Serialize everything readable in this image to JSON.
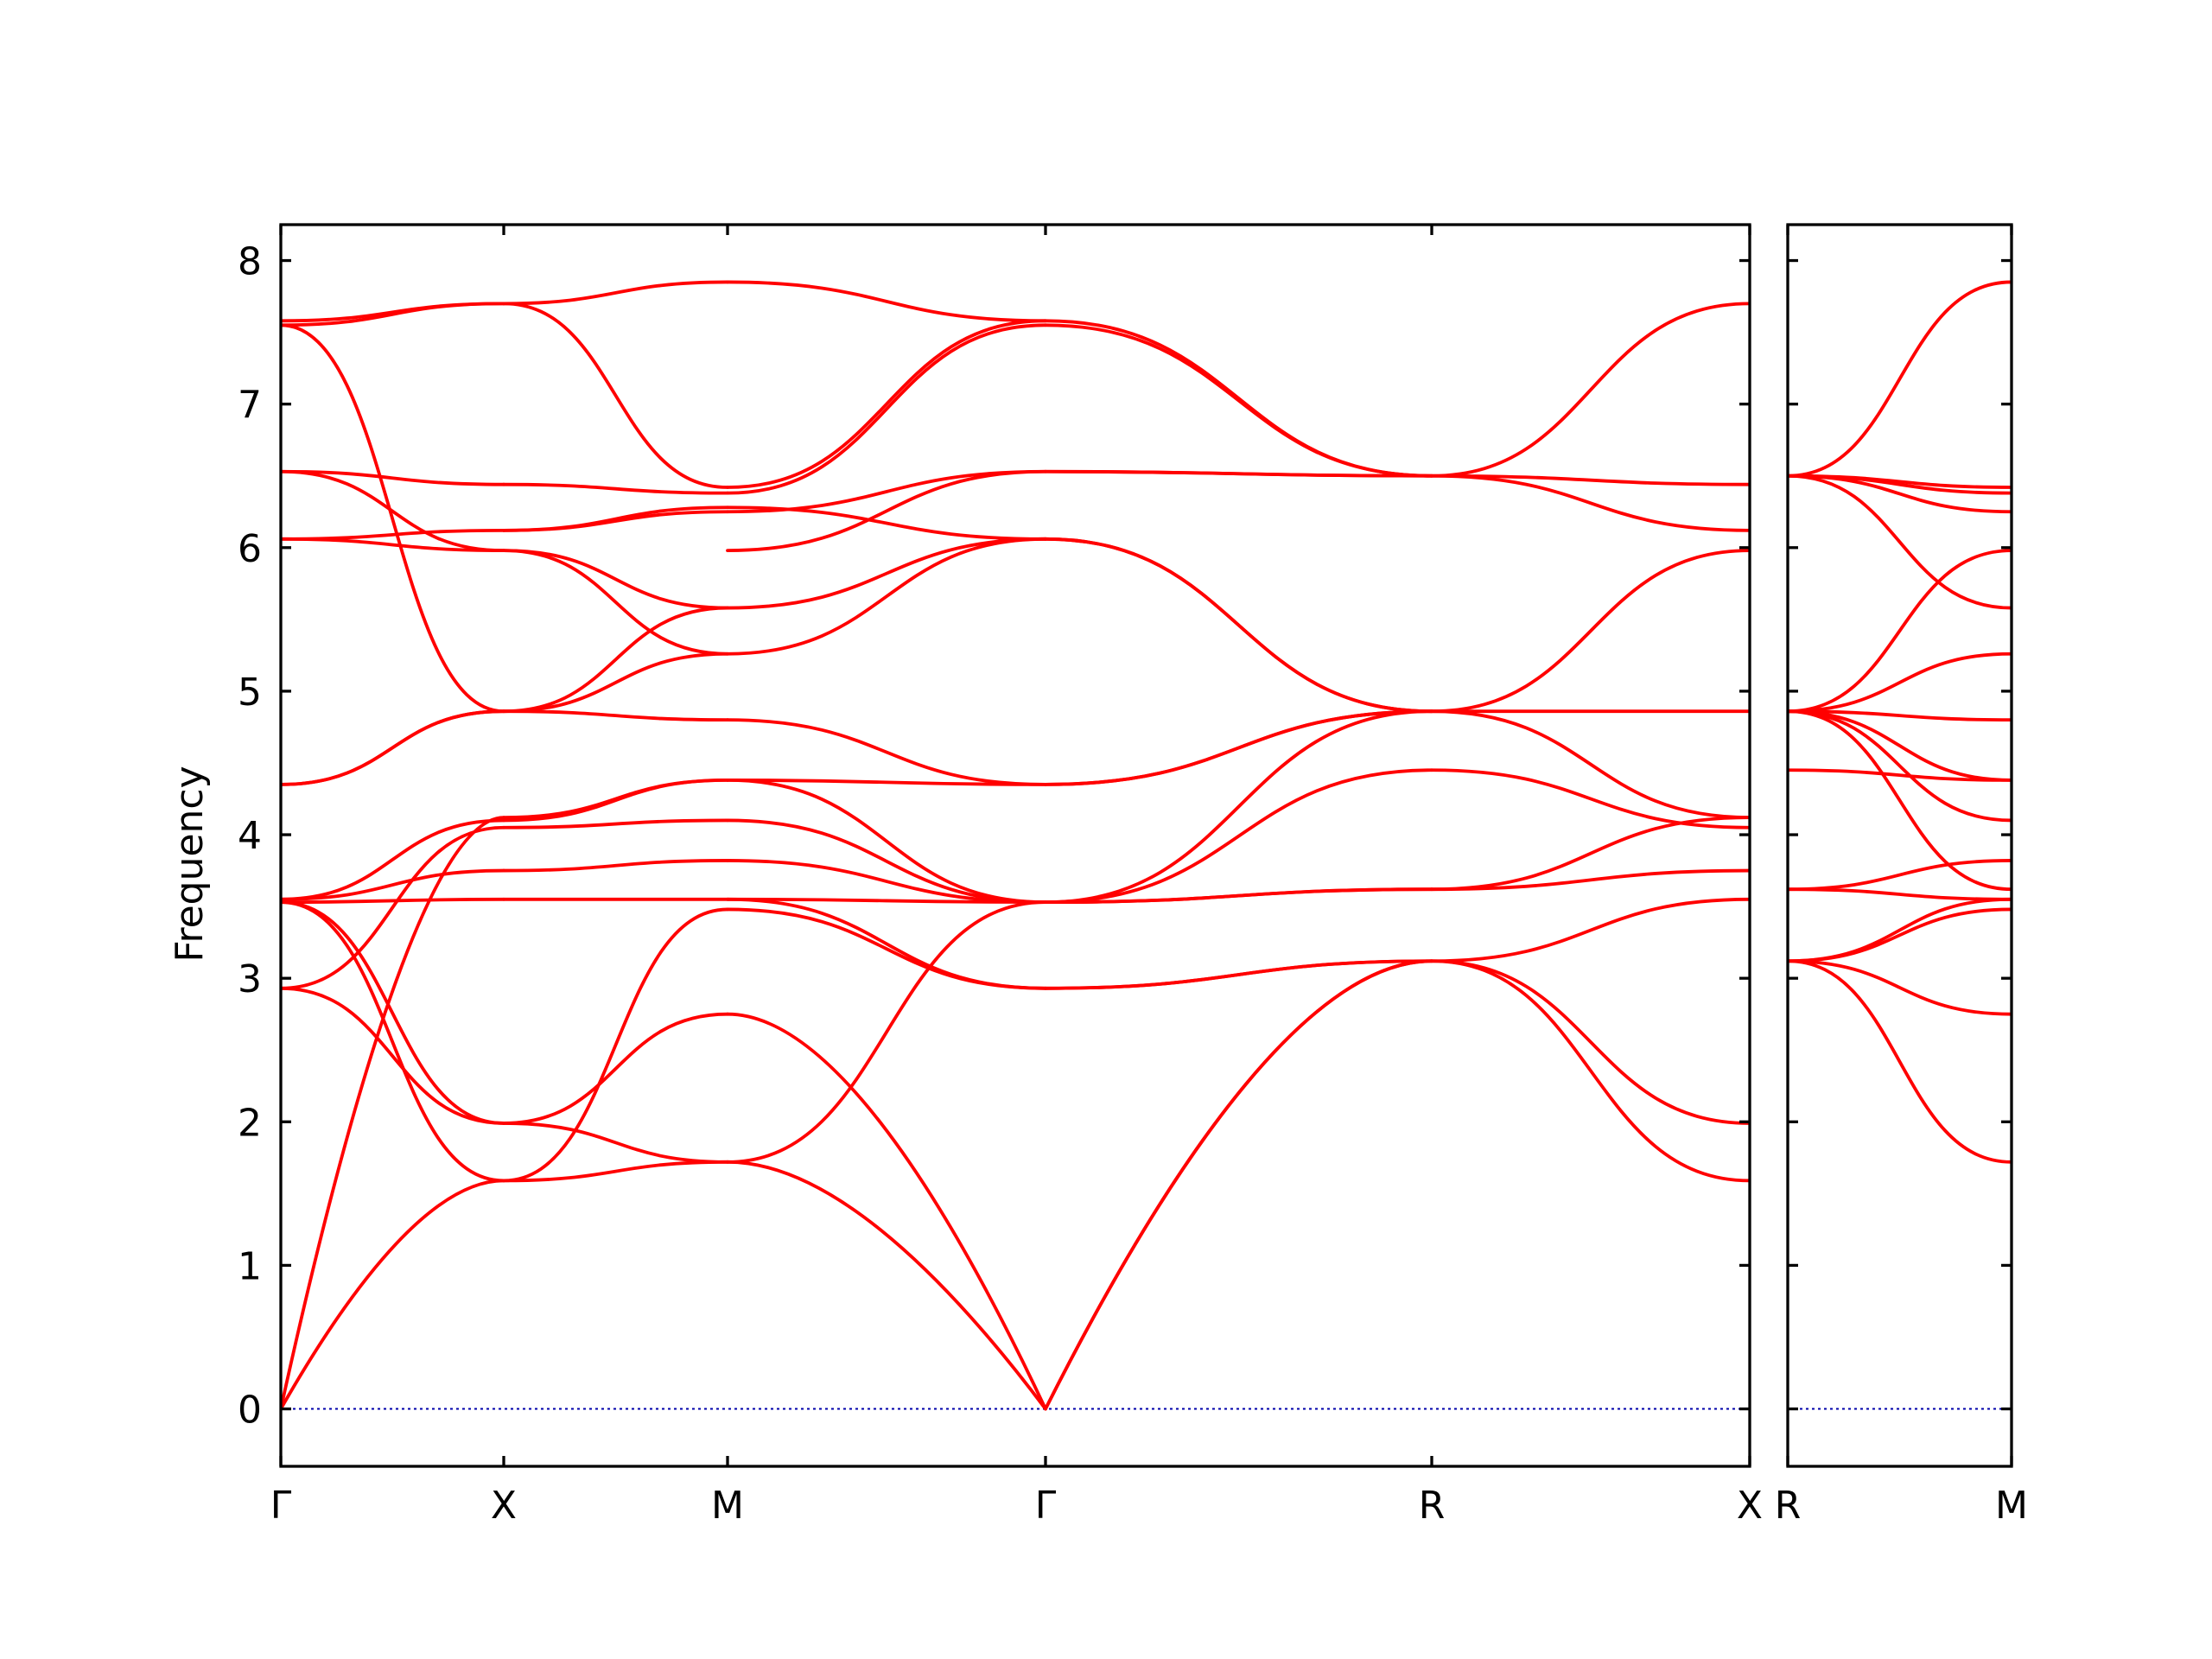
{
  "chart_data": {
    "type": "line",
    "ylabel": "Frequency",
    "ylim": [
      -0.4,
      8.25
    ],
    "yticks": [
      "0",
      "1",
      "2",
      "3",
      "4",
      "5",
      "6",
      "7",
      "8"
    ],
    "grid": false,
    "colors": {
      "bands": "#ff0000",
      "zero_line": "#0000aa",
      "axes": "#000000"
    },
    "panels": [
      {
        "xlabels": [
          "Γ",
          "X",
          "M",
          "Γ",
          "R",
          "X"
        ],
        "segments": [
          {
            "from": "Γ",
            "to": "X",
            "bands": [
              [
                0,
                1.59
              ],
              [
                0,
                4.12
              ],
              [
                2.93,
                1.99
              ],
              [
                2.93,
                4.05
              ],
              [
                3.53,
                1.59
              ],
              [
                3.53,
                1.99
              ],
              [
                3.53,
                3.55
              ],
              [
                3.55,
                4.1
              ],
              [
                3.55,
                3.75
              ],
              [
                4.35,
                4.86
              ],
              [
                4.35,
                4.86
              ],
              [
                6.06,
                5.98
              ],
              [
                6.06,
                6.12
              ],
              [
                6.53,
                5.98
              ],
              [
                6.53,
                6.44
              ],
              [
                7.55,
                4.86
              ],
              [
                7.55,
                7.7
              ],
              [
                7.58,
                7.7
              ]
            ]
          },
          {
            "from": "X",
            "to": "M",
            "bands": [
              [
                1.59,
                1.72
              ],
              [
                1.59,
                3.48
              ],
              [
                1.99,
                2.75
              ],
              [
                1.99,
                1.72
              ],
              [
                3.55,
                3.55
              ],
              [
                3.75,
                3.82
              ],
              [
                4.05,
                4.1
              ],
              [
                4.1,
                4.38
              ],
              [
                4.12,
                4.38
              ],
              [
                4.86,
                4.8
              ],
              [
                4.86,
                5.26
              ],
              [
                4.86,
                5.58
              ],
              [
                5.98,
                5.26
              ],
              [
                5.98,
                5.58
              ],
              [
                6.12,
                6.25
              ],
              [
                6.12,
                6.28
              ],
              [
                6.44,
                6.38
              ],
              [
                7.7,
                7.85
              ],
              [
                7.7,
                6.42
              ]
            ]
          },
          {
            "from": "M",
            "to": "Γ",
            "bands": [
              [
                1.72,
                0
              ],
              [
                2.75,
                0
              ],
              [
                3.48,
                2.93
              ],
              [
                3.55,
                2.93
              ],
              [
                1.72,
                3.53
              ],
              [
                3.82,
                3.53
              ],
              [
                3.55,
                3.53
              ],
              [
                4.1,
                3.53
              ],
              [
                4.38,
                3.53
              ],
              [
                4.38,
                4.35
              ],
              [
                4.8,
                4.35
              ],
              [
                5.26,
                6.06
              ],
              [
                5.58,
                6.06
              ],
              [
                6.25,
                6.53
              ],
              [
                5.98,
                6.53
              ],
              [
                6.28,
                6.06
              ],
              [
                6.38,
                7.55
              ],
              [
                6.42,
                7.58
              ],
              [
                7.85,
                7.58
              ]
            ]
          },
          {
            "from": "Γ",
            "to": "R",
            "bands": [
              [
                0,
                3.12
              ],
              [
                0,
                3.12
              ],
              [
                2.93,
                3.12
              ],
              [
                2.93,
                3.12
              ],
              [
                3.53,
                3.62
              ],
              [
                3.53,
                3.62
              ],
              [
                3.53,
                4.45
              ],
              [
                3.53,
                4.86
              ],
              [
                4.35,
                4.86
              ],
              [
                4.35,
                4.86
              ],
              [
                6.06,
                4.86
              ],
              [
                6.06,
                4.86
              ],
              [
                6.53,
                6.5
              ],
              [
                6.53,
                6.5
              ],
              [
                7.55,
                6.5
              ],
              [
                7.58,
                6.5
              ]
            ]
          },
          {
            "from": "R",
            "to": "X",
            "bands": [
              [
                3.12,
                1.59
              ],
              [
                3.12,
                1.99
              ],
              [
                3.12,
                3.55
              ],
              [
                3.62,
                3.75
              ],
              [
                3.62,
                4.12
              ],
              [
                4.45,
                4.05
              ],
              [
                4.86,
                4.12
              ],
              [
                4.86,
                4.86
              ],
              [
                4.86,
                5.98
              ],
              [
                6.5,
                6.12
              ],
              [
                6.5,
                6.44
              ],
              [
                6.5,
                7.7
              ]
            ]
          }
        ]
      },
      {
        "xlabels": [
          "R",
          "M"
        ],
        "segments": [
          {
            "from": "R",
            "to": "M",
            "bands": [
              [
                3.12,
                1.72
              ],
              [
                3.12,
                2.75
              ],
              [
                3.12,
                3.48
              ],
              [
                3.12,
                3.55
              ],
              [
                3.62,
                3.82
              ],
              [
                3.62,
                3.55
              ],
              [
                4.45,
                4.38
              ],
              [
                4.86,
                3.62
              ],
              [
                4.86,
                4.1
              ],
              [
                4.86,
                4.38
              ],
              [
                4.86,
                4.8
              ],
              [
                4.86,
                5.26
              ],
              [
                4.86,
                5.98
              ],
              [
                6.5,
                5.58
              ],
              [
                6.5,
                6.25
              ],
              [
                6.5,
                6.38
              ],
              [
                6.5,
                6.42
              ],
              [
                6.5,
                7.85
              ]
            ]
          }
        ]
      }
    ]
  }
}
